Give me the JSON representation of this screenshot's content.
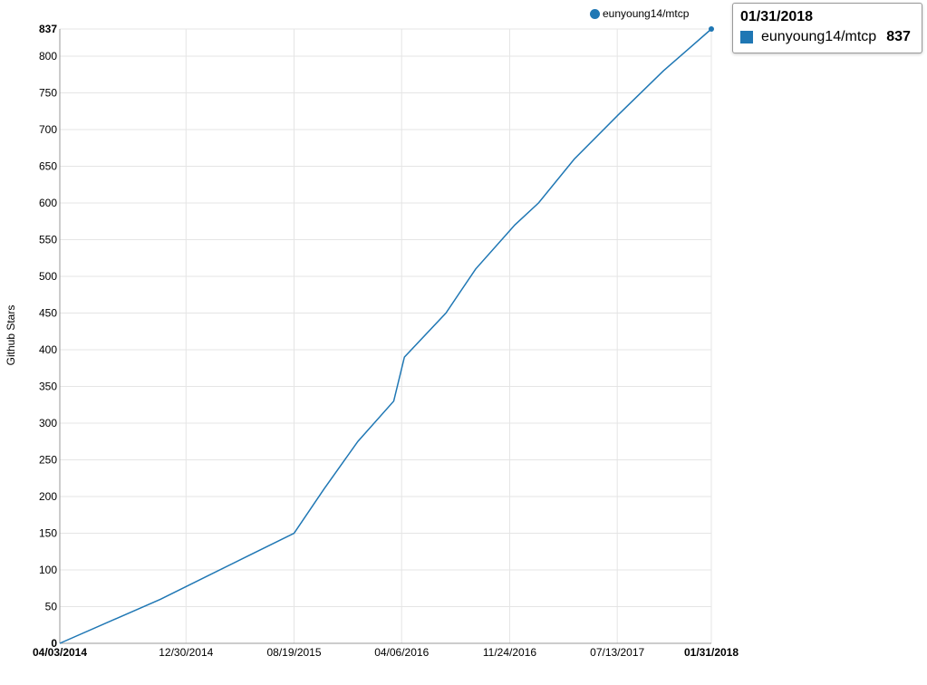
{
  "chart_data": {
    "type": "line",
    "ylabel": "Github Stars",
    "ylim": [
      0,
      837
    ],
    "y_ticks": [
      "0",
      "50",
      "100",
      "150",
      "200",
      "250",
      "300",
      "350",
      "400",
      "450",
      "500",
      "550",
      "600",
      "650",
      "700",
      "750",
      "800",
      "837"
    ],
    "x_ticks": [
      "04/03/2014",
      "12/30/2014",
      "08/19/2015",
      "04/06/2016",
      "11/24/2016",
      "07/13/2017",
      "01/31/2018"
    ],
    "x_domain": [
      "04/03/2014",
      "01/31/2018"
    ],
    "grid": true,
    "legend_position": "top-right",
    "series": [
      {
        "name": "eunyoung14/mtcp",
        "color": "#1f77b4",
        "points": [
          [
            "04/03/2014",
            0
          ],
          [
            "11/05/2014",
            60
          ],
          [
            "05/15/2015",
            120
          ],
          [
            "08/19/2015",
            150
          ],
          [
            "10/22/2015",
            210
          ],
          [
            "01/03/2016",
            275
          ],
          [
            "03/20/2016",
            330
          ],
          [
            "04/12/2016",
            390
          ],
          [
            "07/10/2016",
            450
          ],
          [
            "09/12/2016",
            510
          ],
          [
            "12/05/2016",
            570
          ],
          [
            "01/25/2017",
            600
          ],
          [
            "04/12/2017",
            660
          ],
          [
            "07/15/2017",
            720
          ],
          [
            "10/20/2017",
            780
          ],
          [
            "01/31/2018",
            837
          ]
        ]
      }
    ],
    "tooltip": {
      "date": "01/31/2018",
      "series": "eunyoung14/mtcp",
      "value": "837"
    }
  }
}
